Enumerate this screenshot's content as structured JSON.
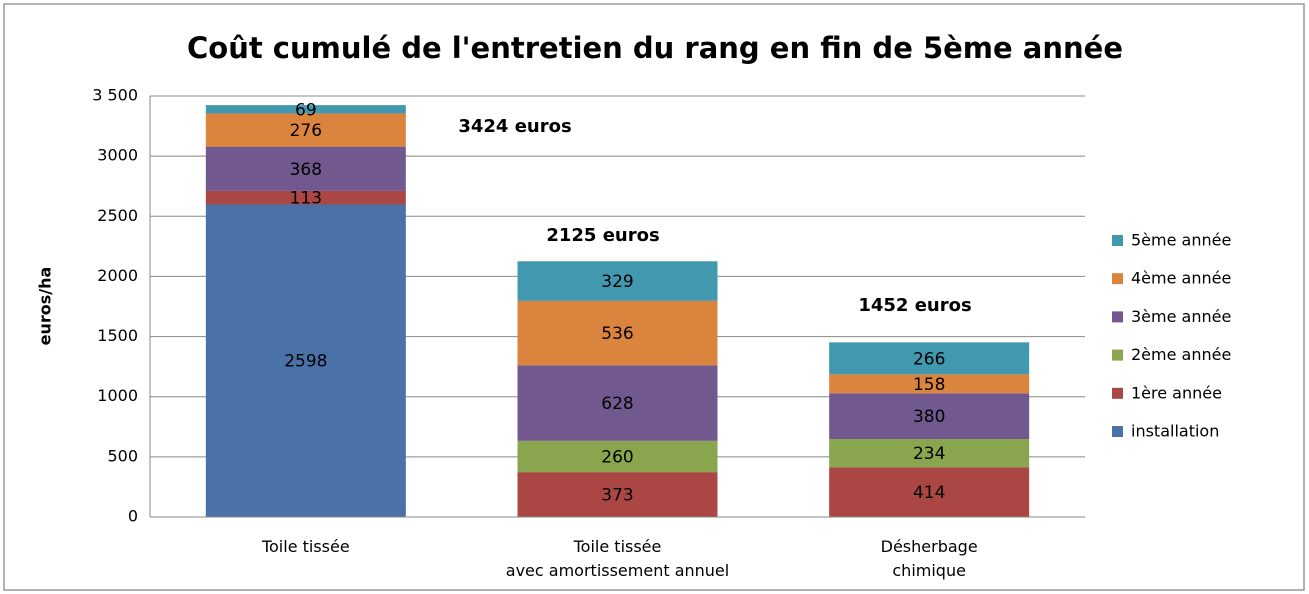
{
  "chart_data": {
    "type": "bar",
    "stacked": true,
    "title": "Coût cumulé de l'entretien du rang en fin de 5ème année",
    "y_label": "euros/ha",
    "categories": [
      "Toile tissée",
      "Toile tissée\navec amortissement annuel",
      "Désherbage\nchimique"
    ],
    "series": [
      {
        "name": "installation",
        "color": "#4a72a8",
        "values": [
          2598,
          null,
          null
        ]
      },
      {
        "name": "1ère année",
        "color": "#aa4643",
        "values": [
          113,
          373,
          414
        ]
      },
      {
        "name": "2ème année",
        "color": "#89a54e",
        "values": [
          null,
          260,
          234
        ]
      },
      {
        "name": "3ème année",
        "color": "#71588f",
        "values": [
          368,
          628,
          380
        ]
      },
      {
        "name": "4ème année",
        "color": "#db843d",
        "values": [
          276,
          536,
          158
        ]
      },
      {
        "name": "5ème année",
        "color": "#4198af",
        "values": [
          69,
          329,
          266
        ]
      }
    ],
    "annotations": [
      "3424 euros",
      "2125 euros",
      "1452 euros"
    ],
    "ylim": [
      0,
      3500
    ],
    "yticks": [
      0,
      500,
      1000,
      1500,
      2000,
      2500,
      3000,
      {
        "value": 3500,
        "label": "3 500"
      }
    ],
    "grid": true,
    "legend": "right"
  }
}
